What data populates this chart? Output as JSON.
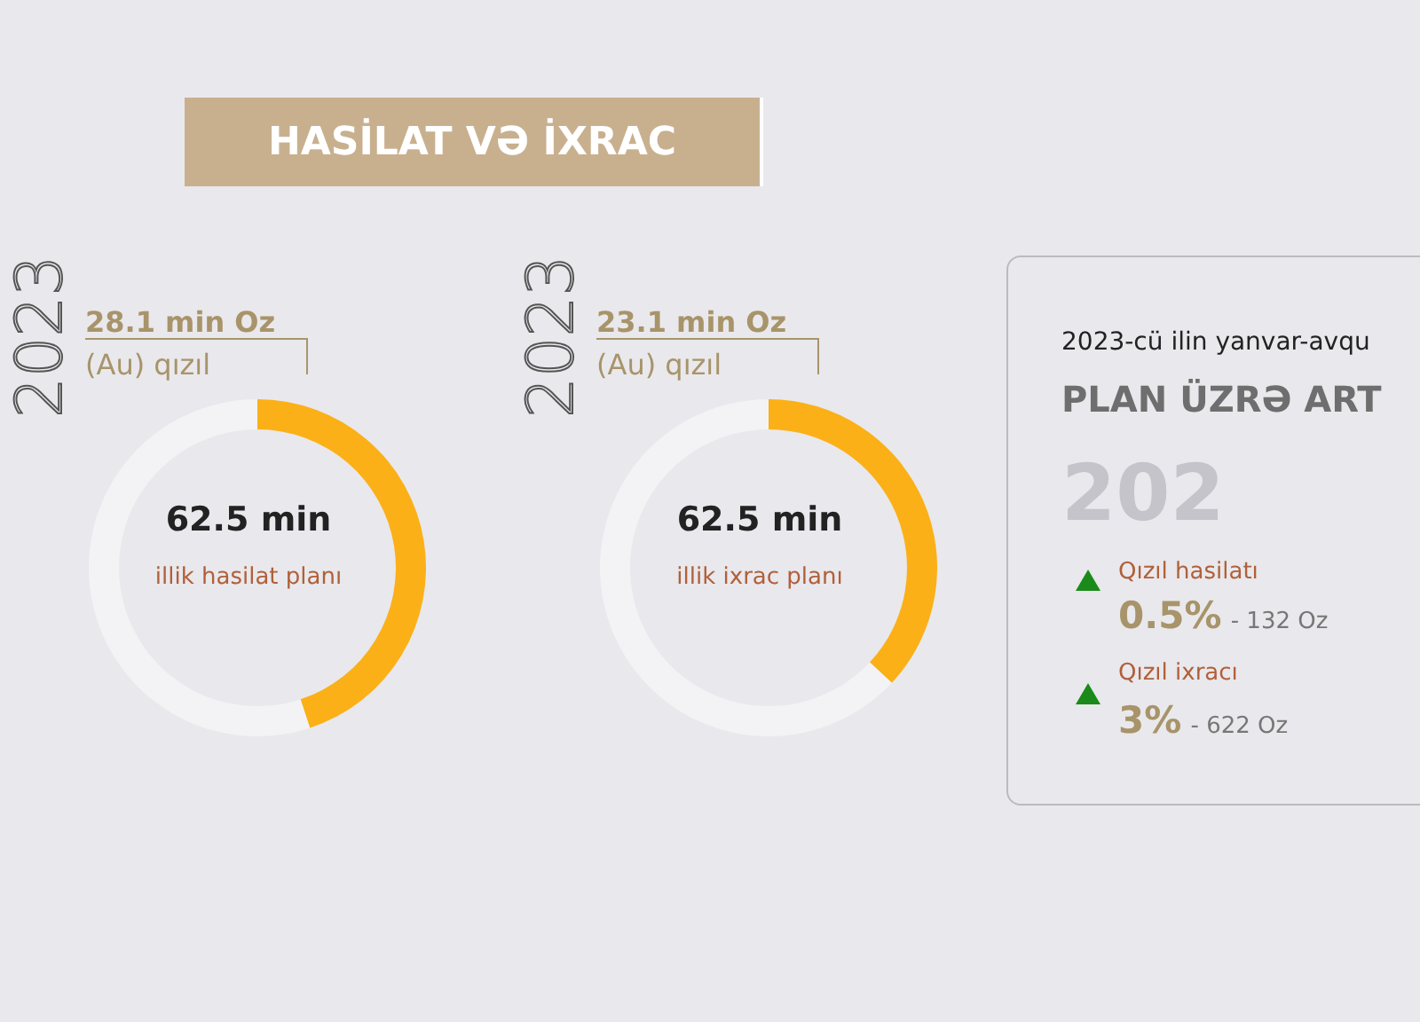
{
  "chart_data": [
    {
      "type": "donut",
      "title": "HASİLAT VƏ İXRAC",
      "subtitle": "2023",
      "categories": [
        "(Au) qızıl",
        null
      ],
      "values": [
        28.1,
        34.4
      ],
      "colors": [
        "#fbb017",
        "#f3f3f5"
      ],
      "value_labels": [
        "28.1 min Oz",
        null
      ],
      "annotations": [
        "62.5 min",
        "illik hasilat planı"
      ]
    },
    {
      "type": "donut",
      "subtitle": "2023",
      "categories": [
        "(Au) qızıl",
        null
      ],
      "values": [
        23.1,
        39.4
      ],
      "colors": [
        "#fbb017",
        "#f3f3f5"
      ],
      "value_labels": [
        "23.1 min Oz",
        null
      ],
      "annotations": [
        "62.5 min",
        "illik ixrac planı"
      ]
    },
    {
      "type": "other",
      "title": "PLAN ÜZRƏ ART",
      "subtitle": "2023-cü ilin yanvar-avqu",
      "annotations": [
        "202",
        "Qızıl hasilatı",
        "0.5%",
        "- 132 Oz",
        "Qızıl ixracı",
        "3%",
        "- 622 Oz"
      ]
    }
  ]
}
